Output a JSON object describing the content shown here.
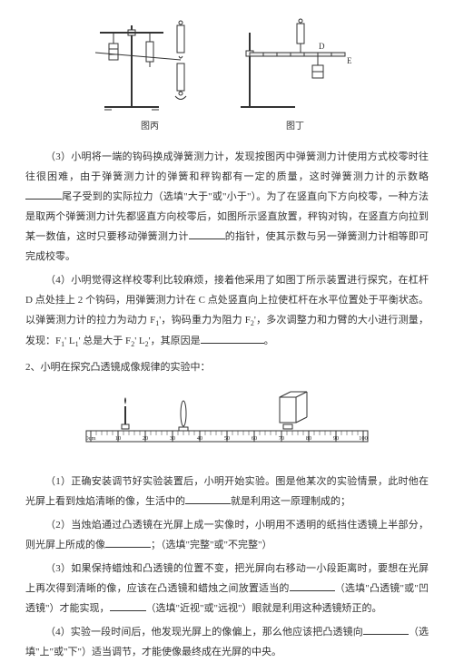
{
  "figure_row1": {
    "fig_left_caption": "图丙",
    "fig_right_caption": "图丁",
    "label_D": "D",
    "label_E": "E"
  },
  "q3": {
    "text_a": "（3）小明将一端的钩码换成弹簧测力计，发现按图丙中弹簧测力计使用方式校零时往往很困难，由于弹簧测力计的弹簧和秤钩都有一定的质量，这时弹簧测力计的示数略",
    "text_b": "尾子受到的实际拉力（选填\"大于\"或\"小于\"）。为了在竖直向下方向校零，一种方法是取两个弹簧测力计先都竖直方向校零后，如图所示竖直放置，秤钩对钩，在竖直方向拉到某一数值，这时只要移动弹簧测力计",
    "text_c": "的指针，使其示数与另一弹簧测力计相等即可完成校零。"
  },
  "q4": {
    "text_a": "（4）小明觉得这样校零利比较麻烦，接着他采用了如图丁所示装置进行探究，在杠杆 D 点处挂上 2 个钩码，用弹簧测力计在 C 点处竖直向上拉使杠杆在水平位置处于平衡状态。以弹簧测力计的拉力为动力 F",
    "sub1": "1",
    "text_b": "'，钩码重力为阻力 F",
    "sub2": "2",
    "text_c": "'，多次调整力和力臂的大小进行测量，发现：F",
    "sub3": "1",
    "text_d": "' L",
    "sub4": "1",
    "text_e": "' 总是大于 F",
    "sub5": "2",
    "text_f": "' L",
    "sub6": "2",
    "text_g": "'，其原因是",
    "text_h": "。"
  },
  "q2": {
    "title": "2、小明在探究凸透镜成像规律的实验中：",
    "ruler_ticks": [
      "0cm",
      "10",
      "20",
      "30",
      "40",
      "50",
      "60",
      "70",
      "80",
      "90",
      "100"
    ]
  },
  "sub1": {
    "text_a": "（1）正确安装调节好实验装置后，小明开始实验。图是他某次的实验情景，此时他在光屏上看到烛焰清晰的像，生活中的",
    "text_b": "就是利用这一原理制成的；"
  },
  "sub2": {
    "text_a": "（2）当烛焰通过凸透镜在光屏上成一实像时，小明用不透明的纸挡住透镜上半部分，则光屏上所成的像",
    "text_b": "；（选填\"完整\"或\"不完整\"）"
  },
  "sub3": {
    "text_a": "（3）如果保持蜡烛和凸透镜的位置不变，把光屏向右移动一小段距离时，要想在光屏上再次得到清晰的像，应该在凸透镜和蜡烛之间放置适当的",
    "text_b": "（选填\"凸透镜\"或\"凹透镜\"）才能实现，",
    "text_c": "（选填\"近视\"或\"远视\"）眼就是利用这种透镜矫正的。"
  },
  "sub4": {
    "text_a": "（4）实验一段时间后，他发现光屏上的像偏上，那么他应该把凸透镜向",
    "text_b": "（选填\"上\"或\"下\"）适当调节，才能使像最终成在光屏的中央。"
  },
  "colors": {
    "stroke": "#333333",
    "fill_light": "#eeeeee"
  }
}
